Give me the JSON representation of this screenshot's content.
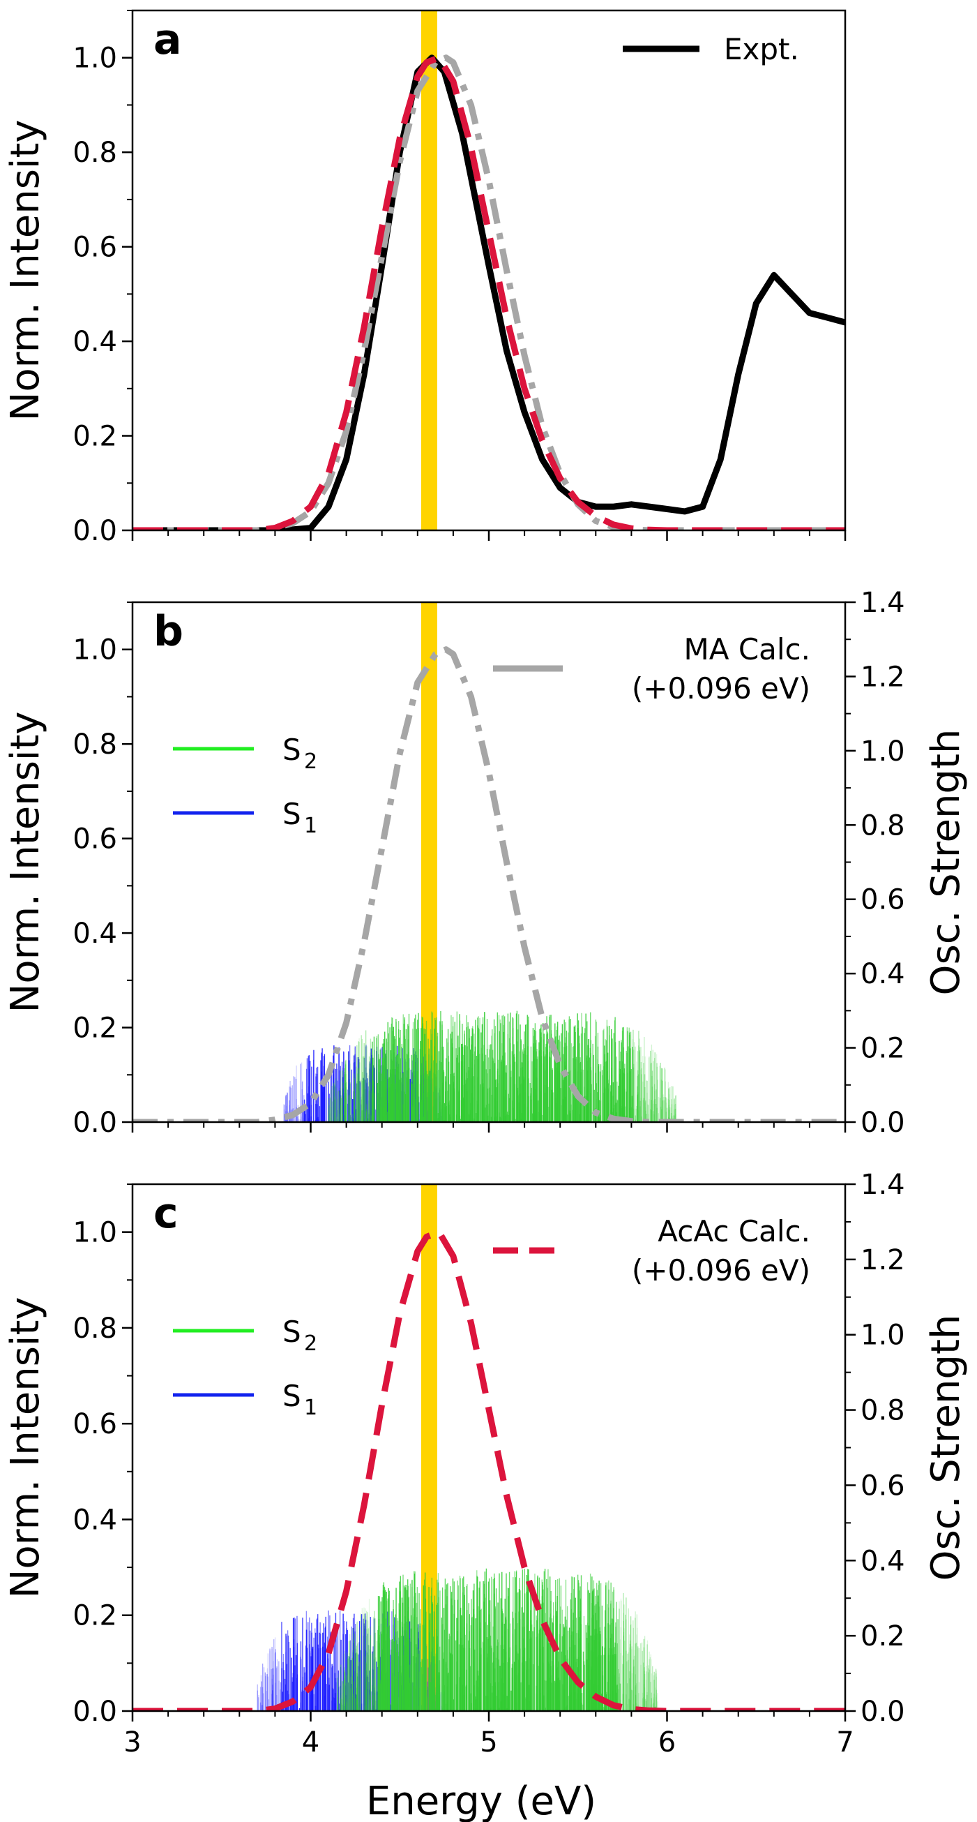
{
  "colors": {
    "expt": "#000000",
    "ma_calc": "#a6a6a6",
    "acac_calc": "#dc143c",
    "s2": "#33cc33",
    "s1": "#1a1aff",
    "highlight": "#ffd400",
    "legend_s2": "#22ee22",
    "legend_s1": "#1122ee"
  },
  "figure": {
    "xlabel": "Energy (eV)",
    "x_ticks": [
      "3",
      "4",
      "5",
      "6",
      "7"
    ]
  },
  "chart_data": [
    {
      "type": "line",
      "panel": "a",
      "xlim": [
        3,
        7
      ],
      "ylim": [
        0,
        1.1
      ],
      "ylabel": "Norm. Intensity",
      "y_ticks": [
        "0.0",
        "0.2",
        "0.4",
        "0.6",
        "0.8",
        "1.0"
      ],
      "legend": [
        "Expt."
      ],
      "highlight_band": [
        4.62,
        4.71
      ],
      "series": [
        {
          "name": "Expt.",
          "style": "solid",
          "x": [
            3.0,
            3.85,
            4.0,
            4.1,
            4.2,
            4.3,
            4.4,
            4.5,
            4.6,
            4.68,
            4.75,
            4.85,
            5.0,
            5.1,
            5.2,
            5.3,
            5.4,
            5.5,
            5.6,
            5.7,
            5.8,
            5.9,
            6.0,
            6.1,
            6.2,
            6.3,
            6.4,
            6.5,
            6.6,
            6.7,
            6.8,
            6.9,
            7.0
          ],
          "y": [
            0.0,
            0.0,
            0.005,
            0.05,
            0.15,
            0.33,
            0.56,
            0.8,
            0.97,
            1.0,
            0.97,
            0.84,
            0.56,
            0.38,
            0.25,
            0.15,
            0.09,
            0.06,
            0.05,
            0.05,
            0.055,
            0.05,
            0.045,
            0.04,
            0.05,
            0.15,
            0.33,
            0.48,
            0.54,
            0.5,
            0.46,
            0.45,
            0.44
          ]
        },
        {
          "style": "dashdot",
          "x": [
            3.0,
            3.7,
            3.8,
            3.9,
            4.0,
            4.1,
            4.2,
            4.3,
            4.4,
            4.5,
            4.6,
            4.7,
            4.76,
            4.8,
            4.9,
            5.0,
            5.1,
            5.2,
            5.3,
            5.4,
            5.5,
            5.6,
            5.7,
            5.8,
            5.9,
            6.0,
            6.1,
            7.0
          ],
          "y": [
            0.0,
            0.0,
            0.005,
            0.015,
            0.04,
            0.1,
            0.21,
            0.38,
            0.58,
            0.78,
            0.93,
            0.99,
            1.0,
            0.99,
            0.9,
            0.74,
            0.55,
            0.37,
            0.22,
            0.12,
            0.055,
            0.02,
            0.007,
            0.002,
            0.0,
            0.0,
            0.0,
            0.0
          ]
        },
        {
          "style": "dashed",
          "x": [
            3.0,
            3.7,
            3.8,
            3.9,
            4.0,
            4.1,
            4.2,
            4.3,
            4.4,
            4.5,
            4.6,
            4.65,
            4.72,
            4.8,
            4.9,
            5.0,
            5.1,
            5.2,
            5.3,
            5.4,
            5.5,
            5.6,
            5.7,
            5.8,
            5.9,
            6.0,
            7.0
          ],
          "y": [
            0.0,
            0.0,
            0.005,
            0.02,
            0.05,
            0.12,
            0.25,
            0.43,
            0.64,
            0.83,
            0.96,
            0.99,
            1.0,
            0.95,
            0.81,
            0.63,
            0.45,
            0.3,
            0.19,
            0.11,
            0.06,
            0.03,
            0.012,
            0.004,
            0.001,
            0.0,
            0.0
          ]
        }
      ]
    },
    {
      "type": "line",
      "panel": "b",
      "xlim": [
        3,
        7
      ],
      "ylim": [
        0,
        1.1
      ],
      "y2lim": [
        0,
        1.4
      ],
      "ylabel": "Norm. Intensity",
      "y2label": "Osc. Strength",
      "y_ticks": [
        "0.0",
        "0.2",
        "0.4",
        "0.6",
        "0.8",
        "1.0"
      ],
      "y2_ticks": [
        "0.0",
        "0.2",
        "0.4",
        "0.6",
        "0.8",
        "1.0",
        "1.2",
        "1.4"
      ],
      "legend_calc": [
        "MA Calc.",
        "(+0.096 eV)"
      ],
      "legend_states": [
        "S",
        "S"
      ],
      "legend_subscripts": [
        "2",
        "1"
      ],
      "highlight_band": [
        4.62,
        4.71
      ],
      "stick_spectra": [
        {
          "state": "S1",
          "x_range": [
            3.85,
            4.75
          ],
          "max": 0.21
        },
        {
          "state": "S2",
          "x_range": [
            4.1,
            6.05
          ],
          "max": 0.3
        }
      ],
      "series": [
        {
          "style": "dashdot",
          "x": [
            3.0,
            3.7,
            3.8,
            3.9,
            4.0,
            4.1,
            4.2,
            4.3,
            4.4,
            4.5,
            4.6,
            4.7,
            4.76,
            4.8,
            4.9,
            5.0,
            5.1,
            5.2,
            5.3,
            5.4,
            5.5,
            5.6,
            5.7,
            5.8,
            5.9,
            6.0,
            6.1,
            7.0
          ],
          "y": [
            0.0,
            0.0,
            0.005,
            0.015,
            0.04,
            0.1,
            0.21,
            0.38,
            0.58,
            0.78,
            0.93,
            0.99,
            1.0,
            0.99,
            0.9,
            0.74,
            0.55,
            0.37,
            0.22,
            0.12,
            0.055,
            0.02,
            0.007,
            0.002,
            0.0,
            0.0,
            0.0,
            0.0
          ]
        }
      ]
    },
    {
      "type": "line",
      "panel": "c",
      "xlim": [
        3,
        7
      ],
      "ylim": [
        0,
        1.1
      ],
      "y2lim": [
        0,
        1.4
      ],
      "ylabel": "Norm. Intensity",
      "y2label": "Osc. Strength",
      "y_ticks": [
        "0.0",
        "0.2",
        "0.4",
        "0.6",
        "0.8",
        "1.0"
      ],
      "y2_ticks": [
        "0.0",
        "0.2",
        "0.4",
        "0.6",
        "0.8",
        "1.0",
        "1.2",
        "1.4"
      ],
      "legend_calc": [
        "AcAc Calc.",
        "(+0.096 eV)"
      ],
      "legend_states": [
        "S",
        "S"
      ],
      "legend_subscripts": [
        "2",
        "1"
      ],
      "highlight_band": [
        4.62,
        4.71
      ],
      "stick_spectra": [
        {
          "state": "S1",
          "x_range": [
            3.7,
            4.75
          ],
          "max": 0.27
        },
        {
          "state": "S2",
          "x_range": [
            4.15,
            5.95
          ],
          "max": 0.38
        }
      ],
      "series": [
        {
          "style": "dashed",
          "x": [
            3.0,
            3.7,
            3.8,
            3.9,
            4.0,
            4.1,
            4.2,
            4.3,
            4.4,
            4.5,
            4.6,
            4.65,
            4.72,
            4.8,
            4.9,
            5.0,
            5.1,
            5.2,
            5.3,
            5.4,
            5.5,
            5.6,
            5.7,
            5.8,
            5.9,
            6.0,
            7.0
          ],
          "y": [
            0.0,
            0.0,
            0.005,
            0.02,
            0.05,
            0.12,
            0.25,
            0.43,
            0.64,
            0.83,
            0.96,
            0.99,
            1.0,
            0.95,
            0.81,
            0.63,
            0.45,
            0.3,
            0.19,
            0.11,
            0.06,
            0.03,
            0.012,
            0.004,
            0.001,
            0.0,
            0.0
          ]
        }
      ]
    }
  ]
}
